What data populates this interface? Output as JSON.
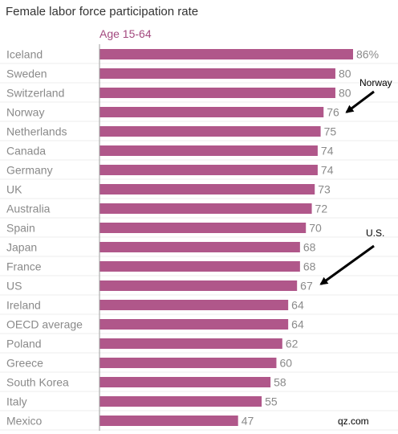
{
  "chart_data": {
    "type": "bar",
    "orientation": "horizontal",
    "title": "Female labor force participation rate",
    "subtitle": "Age 15-64",
    "categories": [
      "Iceland",
      "Sweden",
      "Switzerland",
      "Norway",
      "Netherlands",
      "Canada",
      "Germany",
      "UK",
      "Australia",
      "Spain",
      "Japan",
      "France",
      "US",
      "Ireland",
      "OECD average",
      "Poland",
      "Greece",
      "South Korea",
      "Italy",
      "Mexico"
    ],
    "values": [
      86,
      80,
      80,
      76,
      75,
      74,
      74,
      73,
      72,
      70,
      68,
      68,
      67,
      64,
      64,
      62,
      60,
      58,
      55,
      47
    ],
    "value_labels": [
      "86%",
      "80",
      "80",
      "76",
      "75",
      "74",
      "74",
      "73",
      "72",
      "70",
      "68",
      "68",
      "67",
      "64",
      "64",
      "62",
      "60",
      "58",
      "55",
      "47"
    ],
    "xlim": [
      0,
      86
    ],
    "grid": false,
    "annotations": [
      {
        "text": "Norway",
        "target": "Norway"
      },
      {
        "text": "U.S.",
        "target": "US"
      }
    ],
    "source": "qz.com"
  },
  "colors": {
    "bar": "#b0578a",
    "title": "#333333",
    "subtitle": "#a3497f",
    "label": "#8a8a8a",
    "axis": "#9e9e9e",
    "annotation": "#000000",
    "grid": "#ececec"
  }
}
